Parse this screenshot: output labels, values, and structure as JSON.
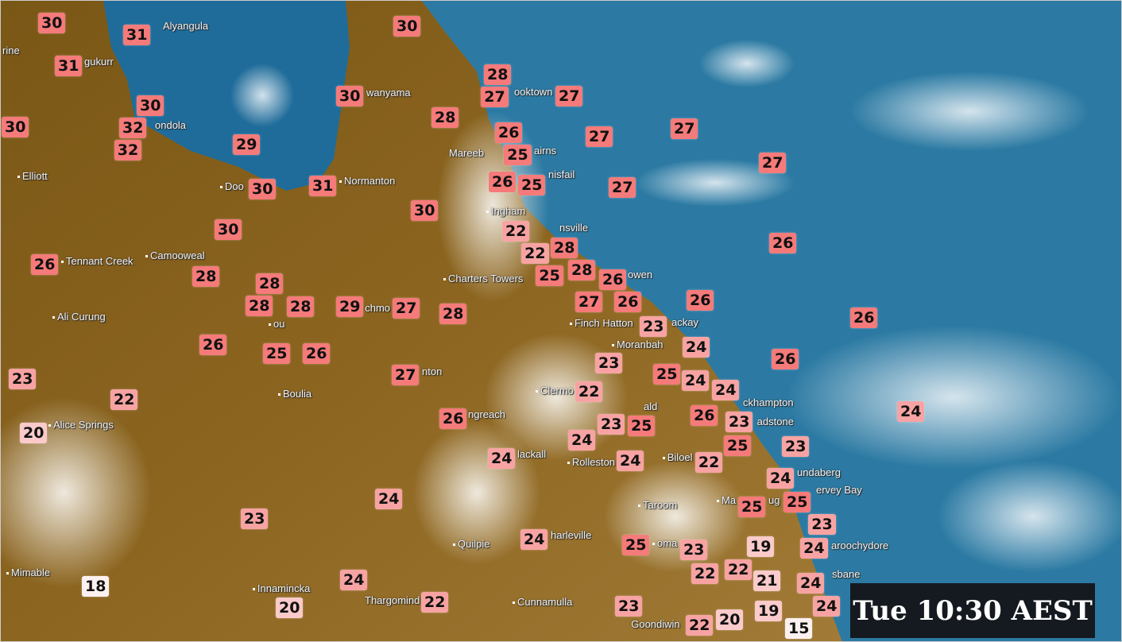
{
  "map": {
    "type": "satellite-temperature-overlay",
    "colors": {
      "ocean": "#2c7aa3",
      "land": "#85601c",
      "temp_hot": "#f57a7a",
      "temp_warm": "#f8a3a3",
      "temp_mild": "#fbcaca",
      "temp_cool": "#fdf0f0"
    },
    "temperatures": [
      30,
      31,
      31,
      30,
      32,
      32,
      30,
      29,
      30,
      31,
      30,
      30,
      28,
      27,
      27,
      28,
      26,
      25,
      27,
      27,
      27,
      26,
      25,
      27,
      30,
      22,
      26,
      30,
      26,
      28,
      28,
      28,
      28,
      29,
      27,
      28,
      22,
      28,
      28,
      25,
      26,
      27,
      26,
      26,
      26,
      23,
      26,
      25,
      26,
      23,
      22,
      20,
      27,
      24,
      23,
      25,
      24,
      24,
      26,
      22,
      26,
      23,
      25,
      24,
      26,
      23,
      25,
      23,
      24,
      24,
      24,
      22,
      24,
      25,
      25,
      24,
      23,
      23,
      24,
      25,
      23,
      19,
      24,
      22,
      22,
      21,
      24,
      24,
      18,
      24,
      20,
      22,
      23,
      19,
      20,
      22,
      15
    ],
    "places": [
      "Alyangula",
      "rine",
      "gukurr",
      "wanyama",
      "ondola",
      "Elliott",
      "Doo",
      "Normanton",
      "ooktown",
      "Mareeb",
      "airns",
      "nisfail",
      "Ingham",
      "nsville",
      "Charters Towers",
      "owen",
      "Tennant Creek",
      "Camooweal",
      "Ali Curung",
      "ou",
      "chmo",
      "Finch Hatton",
      "ackay",
      "Moranbah",
      "Clermo",
      "Boulia",
      "nton",
      "ngreach",
      "Alice Springs",
      "ald",
      "ckhampton",
      "adstone",
      "lackall",
      "Rolleston",
      "Biloel",
      "undaberg",
      "ervey Bay",
      "Ma",
      "ug",
      "Taroom",
      "oma",
      "harleville",
      "Quilpie",
      "aroochydore",
      "sbane",
      "Mimable",
      "Innamincka",
      "Thargomind",
      "Cunnamulla",
      "Goondiwin"
    ]
  },
  "timestamp": "Tue 10:30 AEST"
}
